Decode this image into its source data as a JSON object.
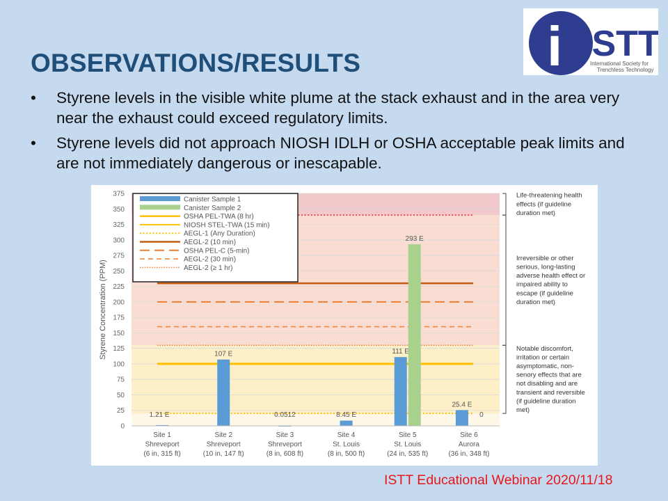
{
  "slide": {
    "title": "OBSERVATIONS/RESULTS",
    "bullets": [
      "Styrene levels in the visible white plume at the stack exhaust and in the area very near the exhaust could exceed regulatory limits.",
      "Styrene levels did not approach NIOSH IDLH or OSHA acceptable peak limits and are not immediately dangerous or inescapable."
    ],
    "bullet_glyph": "•",
    "footer": "ISTT Educational Webinar 2020/11/18"
  },
  "logo": {
    "text": "iSTT",
    "caption_line1": "International Society for",
    "caption_line2": "Trenchless Technology",
    "circle_color": "#2e3d8f"
  },
  "chart_data": {
    "type": "bar",
    "ylabel": "Styrene Concentration (PPM)",
    "ylim": [
      0,
      375
    ],
    "yticks": [
      0,
      25,
      50,
      75,
      100,
      125,
      150,
      175,
      200,
      225,
      250,
      275,
      300,
      325,
      350,
      375
    ],
    "grid": true,
    "legend_position": "top-left",
    "categories": [
      [
        "Site 1",
        "Shreveport",
        "(6 in, 315 ft)"
      ],
      [
        "Site 2",
        "Shreveport",
        "(10 in, 147 ft)"
      ],
      [
        "Site 3",
        "Shreveport",
        "(8 in, 608 ft)"
      ],
      [
        "Site 4",
        "St. Louis",
        "(8 in, 500 ft)"
      ],
      [
        "Site 5",
        "St. Louis",
        "(24 in, 535 ft)"
      ],
      [
        "Site 6",
        "Aurora",
        "(36 in, 348 ft)"
      ]
    ],
    "series": [
      {
        "name": "Canister Sample 1",
        "color": "#5b9bd5",
        "values": [
          1.21,
          107,
          0.0512,
          8.45,
          111,
          25.4
        ],
        "labels": [
          "1.21 E",
          "107 E",
          "0.0512",
          "8.45 E",
          "111 E",
          "25.4 E"
        ]
      },
      {
        "name": "Canister Sample 2",
        "color": "#a9d18e",
        "values": [
          null,
          null,
          null,
          null,
          293,
          0
        ],
        "labels": [
          "",
          "",
          "",
          "",
          "293 E",
          "0"
        ]
      }
    ],
    "reference_lines": [
      {
        "name": "OSHA PEL-TWA (8 hr)",
        "value": 100,
        "color": "#ffc000",
        "style": "solid",
        "width": 3
      },
      {
        "name": "NIOSH STEL-TWA (15 min)",
        "value": 100,
        "color": "#ffc000",
        "style": "solid",
        "width": 2
      },
      {
        "name": "AEGL-1 (Any Duration)",
        "value": 20,
        "color": "#ffc000",
        "style": "dotted",
        "width": 2
      },
      {
        "name": "AEGL-2 (10 min)",
        "value": 230,
        "color": "#c55a11",
        "style": "solid",
        "width": 2.5
      },
      {
        "name": "OSHA PEL-C (5-min)",
        "value": 200,
        "color": "#ed7d31",
        "style": "longdash",
        "width": 2
      },
      {
        "name": "AEGL-2 (30 min)",
        "value": 160,
        "color": "#ed7d31",
        "style": "dash",
        "width": 1.5
      },
      {
        "name": "AEGL-2 (≥ 1 hr)",
        "value": 130,
        "color": "#ed7d31",
        "style": "dotted",
        "width": 1.5
      },
      {
        "name": "",
        "value": 340,
        "color": "#e8464a",
        "style": "dotted",
        "width": 2
      }
    ],
    "zones": [
      {
        "from": 0,
        "to": 20,
        "color": "#fff8e8"
      },
      {
        "from": 20,
        "to": 130,
        "color": "#fdefc8"
      },
      {
        "from": 130,
        "to": 340,
        "color": "#f9ddd3"
      },
      {
        "from": 340,
        "to": 375,
        "color": "#f2c8cb"
      }
    ],
    "annotations": [
      {
        "from": 340,
        "to": 375,
        "lines": [
          "Life-threatening health",
          "effects (if guideline",
          "duration met)"
        ]
      },
      {
        "from": 130,
        "to": 340,
        "lines": [
          "Irreversible or other",
          "serious, long-lasting",
          "adverse health effect or",
          "impaired ability to",
          "escape (if guideline",
          "duration met)"
        ]
      },
      {
        "from": 20,
        "to": 130,
        "lines": [
          "Notable discomfort,",
          "irritation or certain",
          "asymptomatic, non-",
          "senory effects that are",
          "not disabling and are",
          "transient and reversible",
          "(if guideline duration",
          "met)"
        ]
      }
    ]
  }
}
